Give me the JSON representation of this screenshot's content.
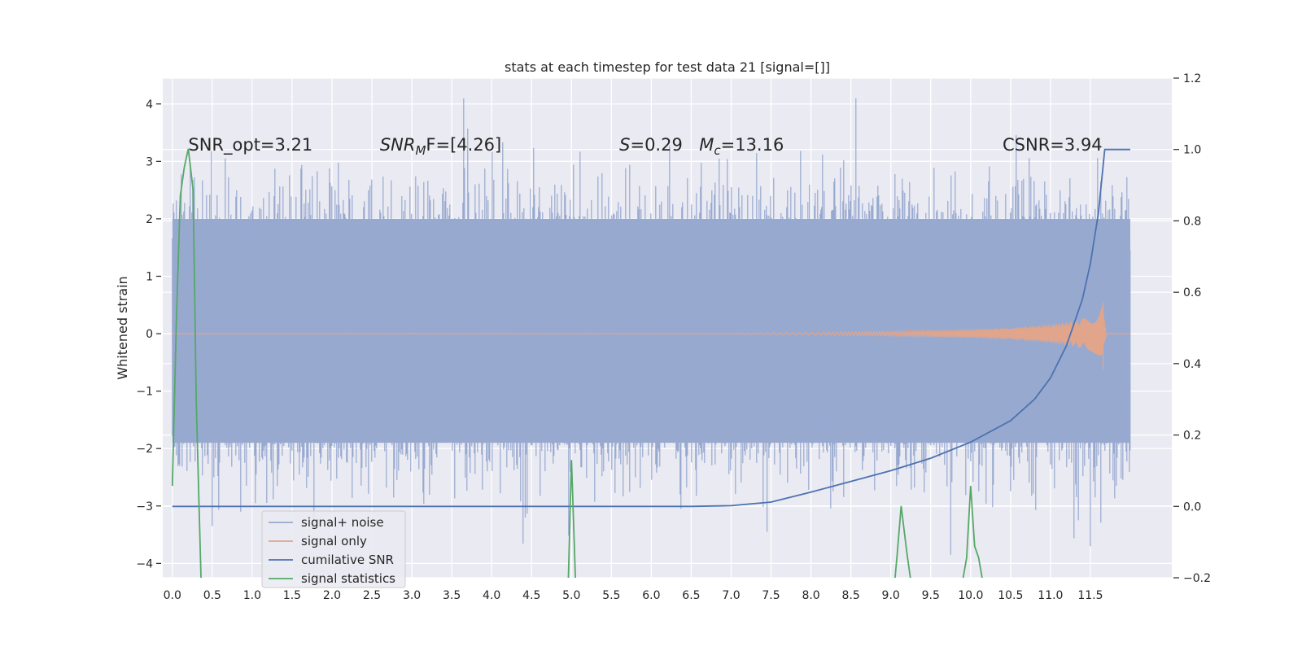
{
  "chart_data": {
    "type": "line",
    "title": "stats at each timestep for test data 21 [signal=[]]",
    "ylabel": "Whitened strain",
    "xlabel": "",
    "xlim": [
      -0.12,
      12.52
    ],
    "ylim": [
      -4.25,
      4.45
    ],
    "y2lim": [
      -0.2,
      1.2
    ],
    "grid": true,
    "background": "#eaeaf2",
    "x_ticks": [
      0.0,
      0.5,
      1.0,
      1.5,
      2.0,
      2.5,
      3.0,
      3.5,
      4.0,
      4.5,
      5.0,
      5.5,
      6.0,
      6.5,
      7.0,
      7.5,
      8.0,
      8.5,
      9.0,
      9.5,
      10.0,
      10.5,
      11.0,
      11.5
    ],
    "x_tick_labels": [
      "0.0",
      "0.5",
      "1.0",
      "1.5",
      "2.0",
      "2.5",
      "3.0",
      "3.5",
      "4.0",
      "4.5",
      "5.0",
      "5.5",
      "6.0",
      "6.5",
      "7.0",
      "7.5",
      "8.0",
      "8.5",
      "9.0",
      "9.5",
      "10.0",
      "10.5",
      "11.0",
      "11.5"
    ],
    "y_ticks": [
      4,
      3,
      2,
      1,
      0,
      -1,
      -2,
      -3,
      -4
    ],
    "y_tick_labels": [
      "4",
      "3",
      "2",
      "1",
      "0",
      "−1",
      "−2",
      "−3",
      "−4"
    ],
    "y2_ticks": [
      1.2,
      1.0,
      0.8,
      0.6,
      0.4,
      0.2,
      0.0,
      -0.2
    ],
    "y2_tick_labels": [
      "1.2",
      "1.0",
      "0.8",
      "0.6",
      "0.4",
      "0.2",
      "0.0",
      "−0.2"
    ],
    "annotations": [
      {
        "name": "snr-opt-annotation",
        "text": "SNR_opt=3.21",
        "x": 0.2,
        "y": 3.3
      },
      {
        "name": "snr-mf-annotation",
        "text": "SNR",
        "sub": "M",
        "rest": "F=[4.26]",
        "x": 2.6,
        "y": 3.3
      },
      {
        "name": "s-annotation",
        "text": "S",
        "rest": "=0.29",
        "x": 5.6,
        "y": 3.3
      },
      {
        "name": "mc-annotation",
        "text": "M",
        "sub": "c",
        "rest": "=13.16",
        "x": 6.6,
        "y": 3.3
      },
      {
        "name": "csnr-annotation",
        "text": "CSNR=3.94",
        "x": 10.4,
        "y": 3.3
      }
    ],
    "legend": {
      "placement": "lower-left",
      "entries": [
        {
          "name": "signal+ noise",
          "color": "#98a9d0"
        },
        {
          "name": "signal only",
          "color": "#e1a58b"
        },
        {
          "name": "cumilative SNR",
          "color": "#4c72b0"
        },
        {
          "name": "signal statistics",
          "color": "#55a868"
        }
      ]
    },
    "series": [
      {
        "name": "signal+ noise",
        "axis": "left",
        "color": "#98a9d0",
        "x_range": [
          0.0,
          12.0
        ],
        "band": [
          -1.9,
          2.0
        ],
        "peak_range": [
          -3.9,
          4.1
        ],
        "description_values": {
          "max": 4.1,
          "min": -3.9
        }
      },
      {
        "name": "signal only",
        "axis": "left",
        "color": "#e1a58b",
        "x": [
          0.0,
          7.0,
          8.0,
          9.0,
          10.0,
          10.5,
          11.0,
          11.3,
          11.5,
          11.6,
          11.65,
          11.7,
          12.0
        ],
        "amplitude": [
          0.0,
          0.005,
          0.02,
          0.04,
          0.07,
          0.1,
          0.16,
          0.22,
          0.3,
          0.38,
          0.5,
          0.0,
          0.0
        ]
      },
      {
        "name": "cumilative SNR",
        "axis": "right",
        "color": "#4c72b0",
        "x": [
          0.0,
          6.5,
          7.0,
          7.5,
          8.0,
          8.5,
          9.0,
          9.5,
          10.0,
          10.5,
          10.8,
          11.0,
          11.2,
          11.4,
          11.5,
          11.6,
          11.68,
          12.0
        ],
        "values": [
          0.0,
          0.0,
          0.002,
          0.012,
          0.04,
          0.07,
          0.1,
          0.135,
          0.18,
          0.24,
          0.3,
          0.36,
          0.45,
          0.58,
          0.68,
          0.82,
          1.0,
          1.0
        ]
      },
      {
        "name": "signal statistics",
        "axis": "left",
        "color": "#55a868",
        "segments": [
          {
            "x": [
              0.0,
              0.05,
              0.1,
              0.15,
              0.2,
              0.26,
              0.3,
              0.36
            ],
            "values": [
              -2.65,
              0.2,
              2.4,
              2.9,
              3.22,
              2.5,
              -1.2,
              -4.3
            ]
          },
          {
            "x": [
              4.96,
              5.0,
              5.05
            ],
            "values": [
              -4.3,
              -2.2,
              -4.3
            ]
          },
          {
            "x": [
              9.05,
              9.08,
              9.13,
              9.2,
              9.25
            ],
            "values": [
              -4.3,
              -3.85,
              -3.0,
              -3.8,
              -4.3
            ]
          },
          {
            "x": [
              9.9,
              9.95,
              10.0,
              10.05,
              10.1,
              10.15
            ],
            "values": [
              -4.3,
              -3.9,
              -2.65,
              -3.7,
              -3.9,
              -4.3
            ]
          }
        ]
      }
    ]
  }
}
